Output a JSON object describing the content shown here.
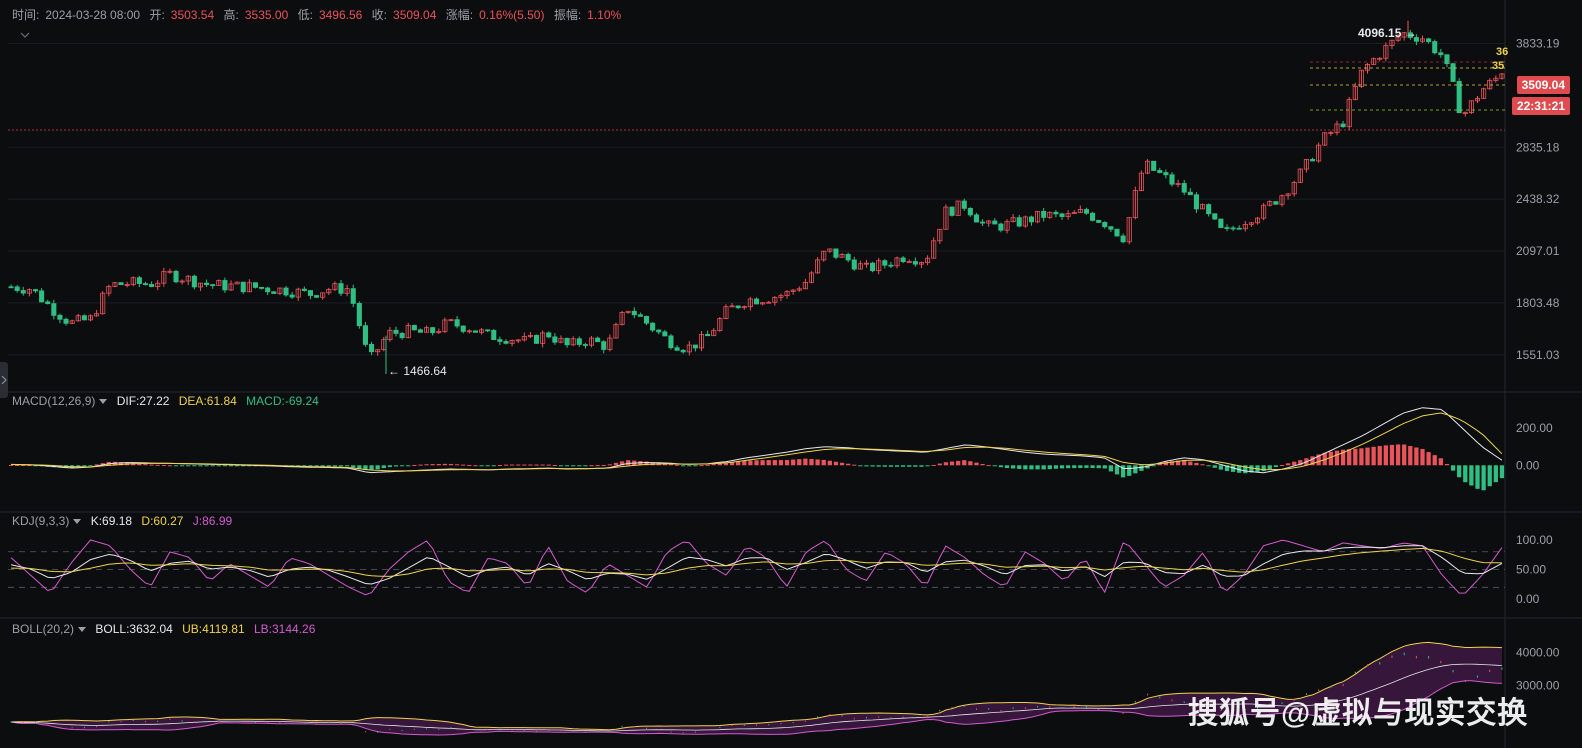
{
  "header": {
    "time_label": "时间:",
    "time": "2024-03-28 08:00",
    "open_label": "开:",
    "open": "3503.54",
    "high_label": "高:",
    "high": "3535.00",
    "low_label": "低:",
    "low": "3496.56",
    "close_label": "收:",
    "close": "3509.04",
    "change_label": "涨幅:",
    "change": "0.16%(5.50)",
    "amplitude_label": "振幅:",
    "amplitude": "1.10%"
  },
  "price_tags": {
    "last_price": "3509.04",
    "countdown": "22:31:21",
    "partial_a": "36",
    "partial_b": "35"
  },
  "annotations": {
    "high_mark": "4096.15",
    "low_mark": "1466.64"
  },
  "macd": {
    "name": "MACD(12,26,9)",
    "dif": "DIF:27.22",
    "dea": "DEA:61.84",
    "macd": "MACD:-69.24"
  },
  "kdj": {
    "name": "KDJ(9,3,3)",
    "k": "K:69.18",
    "d": "D:60.27",
    "j": "J:86.99"
  },
  "boll": {
    "name": "BOLL(20,2)",
    "mid": "BOLL:3632.04",
    "ub": "UB:4119.81",
    "lb": "LB:3144.26"
  },
  "watermark": "搜狐号@虚拟与现实交换",
  "colors": {
    "up": "#e9535a",
    "down": "#2fbf84",
    "dif": "#e6e8eb",
    "dea": "#f0d24a",
    "j": "#d35bd0",
    "bg": "#0c0d0f",
    "grid": "#1c1e22"
  },
  "chart_data": [
    {
      "type": "candlestick",
      "title": "",
      "y_ticks": [
        1551.03,
        1803.48,
        2097.01,
        2438.32,
        2835.18,
        3833.19
      ],
      "y_scale": "log",
      "ylim": [
        1400,
        4300
      ],
      "annotated_high": 4096.15,
      "annotated_low": 1466.64,
      "last_close": 3509.04,
      "close_path": [
        1890,
        1880,
        1780,
        1700,
        1720,
        1900,
        1910,
        1905,
        1960,
        1930,
        1900,
        1895,
        1890,
        1880,
        1870,
        1850,
        1880,
        1880,
        1520,
        1650,
        1660,
        1650,
        1700,
        1680,
        1640,
        1630,
        1610,
        1650,
        1590,
        1620,
        1590,
        1780,
        1700,
        1620,
        1580,
        1630,
        1760,
        1820,
        1830,
        1850,
        1920,
        2100,
        2050,
        1990,
        2020,
        2070,
        2040,
        2350,
        2400,
        2250,
        2260,
        2290,
        2330,
        2310,
        2350,
        2280,
        2180,
        2700,
        2600,
        2500,
        2350,
        2200,
        2290,
        2360,
        2480,
        2650,
        2900,
        3050,
        3550,
        3750,
        3950,
        3900,
        3700,
        3100,
        3350,
        3509.04
      ]
    },
    {
      "type": "line",
      "name": "MACD(12,26,9)",
      "y_ticks": [
        0.0,
        200.0
      ],
      "series": [
        {
          "name": "DIF",
          "last": 27.22
        },
        {
          "name": "DEA",
          "last": 61.84
        },
        {
          "name": "MACD",
          "last": -69.24
        }
      ],
      "dif_path": [
        5,
        3,
        -5,
        -15,
        -10,
        10,
        15,
        12,
        10,
        8,
        5,
        3,
        0,
        -3,
        -8,
        -10,
        -12,
        -15,
        -40,
        -35,
        -30,
        -25,
        -20,
        -22,
        -25,
        -20,
        -18,
        -15,
        -20,
        -18,
        -15,
        10,
        15,
        12,
        5,
        8,
        20,
        40,
        55,
        70,
        90,
        100,
        95,
        85,
        80,
        75,
        70,
        90,
        110,
        100,
        85,
        70,
        60,
        55,
        50,
        40,
        -20,
        -10,
        20,
        40,
        30,
        0,
        -30,
        -40,
        -20,
        10,
        60,
        110,
        160,
        220,
        280,
        310,
        300,
        200,
        100,
        27.22
      ],
      "dea_path": [
        4,
        3,
        0,
        -8,
        -9,
        0,
        8,
        10,
        10,
        9,
        7,
        5,
        2,
        0,
        -4,
        -7,
        -9,
        -12,
        -25,
        -30,
        -30,
        -28,
        -24,
        -23,
        -24,
        -22,
        -20,
        -17,
        -18,
        -18,
        -16,
        -4,
        5,
        8,
        6,
        7,
        13,
        27,
        41,
        56,
        72,
        86,
        90,
        88,
        84,
        79,
        74,
        82,
        96,
        98,
        92,
        81,
        71,
        63,
        57,
        48,
        14,
        2,
        11,
        26,
        28,
        14,
        -8,
        -24,
        -22,
        -6,
        27,
        68,
        114,
        167,
        223,
        266,
        283,
        241,
        170,
        61.84
      ],
      "macd_hist_path": [
        2,
        1,
        -10,
        -14,
        -2,
        20,
        14,
        4,
        0,
        -2,
        -4,
        -4,
        -4,
        -6,
        -8,
        -6,
        -6,
        -6,
        -30,
        -10,
        0,
        6,
        8,
        2,
        -2,
        4,
        4,
        4,
        -4,
        0,
        2,
        28,
        20,
        8,
        -2,
        2,
        14,
        26,
        28,
        28,
        36,
        28,
        10,
        -6,
        -8,
        -8,
        -8,
        16,
        28,
        4,
        -14,
        -22,
        -22,
        -16,
        -14,
        -16,
        -68,
        -24,
        18,
        28,
        4,
        -28,
        -44,
        -32,
        4,
        32,
        66,
        84,
        92,
        106,
        114,
        88,
        34,
        -82,
        -140,
        -69.24
      ]
    },
    {
      "type": "line",
      "name": "KDJ(9,3,3)",
      "y_ticks": [
        0.0,
        50.0,
        100.0
      ],
      "series": [
        {
          "name": "K",
          "last": 69.18
        },
        {
          "name": "D",
          "last": 60.27
        },
        {
          "name": "J",
          "last": 86.99
        }
      ],
      "j_path": [
        70,
        40,
        10,
        60,
        100,
        90,
        50,
        20,
        80,
        70,
        30,
        60,
        40,
        20,
        70,
        60,
        40,
        20,
        5,
        50,
        80,
        100,
        30,
        10,
        70,
        60,
        20,
        90,
        30,
        10,
        60,
        40,
        20,
        80,
        100,
        60,
        40,
        90,
        70,
        20,
        80,
        100,
        50,
        30,
        80,
        60,
        20,
        90,
        70,
        40,
        20,
        80,
        60,
        30,
        70,
        10,
        100,
        60,
        20,
        40,
        80,
        10,
        40,
        90,
        100,
        90,
        80,
        95,
        90,
        85,
        95,
        90,
        40,
        5,
        40,
        86.99
      ]
    },
    {
      "type": "line",
      "name": "BOLL(20,2)",
      "y_ticks": [
        3000.0,
        4000.0
      ],
      "series": [
        {
          "name": "BOLL",
          "last": 3632.04
        },
        {
          "name": "UB",
          "last": 4119.81
        },
        {
          "name": "LB",
          "last": 3144.26
        }
      ]
    }
  ]
}
